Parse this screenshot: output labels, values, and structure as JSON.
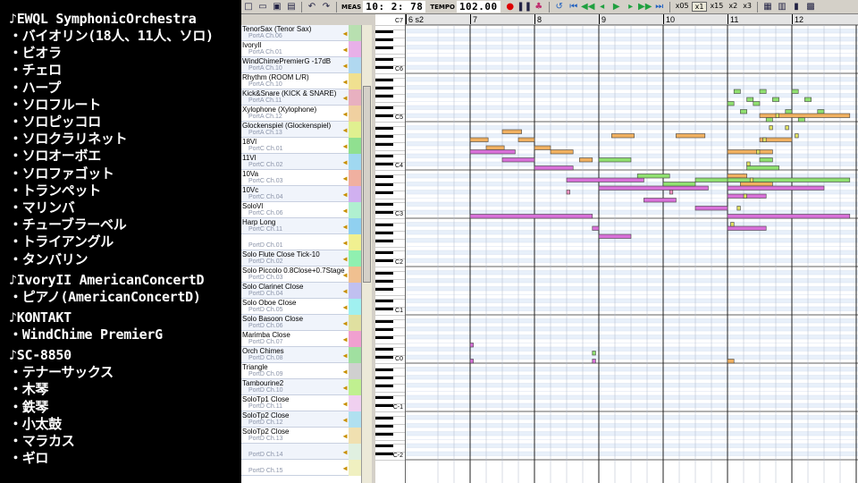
{
  "overlay": {
    "groups": [
      {
        "title": "♪EWQL SymphonicOrchestra",
        "items": [
          "・バイオリン(18人、11人、ソロ)",
          "・ビオラ",
          "・チェロ",
          "・ハープ",
          "・ソロフルート",
          "・ソロピッコロ",
          "・ソロクラリネット",
          "・ソロオーボエ",
          "・ソロファゴット",
          "・トランペット",
          "・マリンバ",
          "・チューブラーベル",
          "・トライアングル",
          "・タンバリン"
        ]
      },
      {
        "title": "♪IvoryII AmericanConcertD",
        "items": [
          "・ピアノ(AmericanConcertD)"
        ]
      },
      {
        "title": "♪KONTAKT",
        "items": [
          "・WindChime PremierG"
        ]
      },
      {
        "title": "♪SC-8850",
        "items": [
          "・テナーサックス",
          "・木琴",
          "・鉄琴",
          "・小太鼓",
          "・マラカス",
          "・ギロ"
        ]
      }
    ]
  },
  "toolbar": {
    "meas_label": "MEAS",
    "meas_value": "10: 2: 78",
    "tempo_label": "TEMPO",
    "tempo_value": "102.00",
    "zoom_options": [
      "x05",
      "x1",
      "x15",
      "x2",
      "x3"
    ],
    "zoom_selected": "x1",
    "icons": [
      "new-icon",
      "open-icon",
      "save-icon",
      "print-icon",
      "undo-icon",
      "redo-icon",
      "record-icon",
      "pause-icon",
      "metronome-icon",
      "loop-icon",
      "rewind-start-icon",
      "rewind-icon",
      "play-icon",
      "forward-icon",
      "forward-end-icon"
    ]
  },
  "tracks": [
    {
      "name": "TenorSax (Tenor Sax)",
      "port": "PortA  Ch.06",
      "color": "#b8e0b0"
    },
    {
      "name": "IvoryII",
      "port": "PortA  Ch.01",
      "color": "#e8b0e8"
    },
    {
      "name": "WindChimePremierG -17dB",
      "port": "PortA  Ch.10",
      "color": "#b0d8f0"
    },
    {
      "name": "Rhythm (ROOM L/R)",
      "port": "PortA  Ch.10",
      "color": "#f0e090"
    },
    {
      "name": "Kick&Snare (KICK & SNARE)",
      "port": "PortA  Ch.11",
      "color": "#e8b0c0"
    },
    {
      "name": "Xylophone (Xylophone)",
      "port": "PortA  Ch.12",
      "color": "#f0d0a0"
    },
    {
      "name": "Glockenspiel (Glockenspiel)",
      "port": "PortA  Ch.13",
      "color": "#e0f090"
    },
    {
      "name": "18Vl",
      "port": "PortC  Ch.01",
      "color": "#90e090"
    },
    {
      "name": "11Vl",
      "port": "PortC  Ch.02",
      "color": "#a0d8f0"
    },
    {
      "name": "10Va",
      "port": "PortC  Ch.03",
      "color": "#f0b0a0"
    },
    {
      "name": "10Vc",
      "port": "PortC  Ch.04",
      "color": "#d0b0f0"
    },
    {
      "name": "SoloVl",
      "port": "PortC  Ch.06",
      "color": "#b0f0d0"
    },
    {
      "name": "Harp Long",
      "port": "PortC  Ch.11",
      "color": "#90d0f0"
    },
    {
      "name": "",
      "port": "PortD  Ch.01",
      "color": "#f0f090"
    },
    {
      "name": "Solo Flute Close Tick-10",
      "port": "PortD  Ch.02",
      "color": "#90f0b0"
    },
    {
      "name": "Solo Piccolo 0.8Close+0.7Stage",
      "port": "PortD  Ch.03",
      "color": "#f0c090"
    },
    {
      "name": "Solo Clarinet Close",
      "port": "PortD  Ch.04",
      "color": "#c0c0f0"
    },
    {
      "name": "Solo Oboe Close",
      "port": "PortD  Ch.05",
      "color": "#a0f0f0"
    },
    {
      "name": "Solo Basoon Close",
      "port": "PortD  Ch.06",
      "color": "#e0e0a0"
    },
    {
      "name": "Marimba Close",
      "port": "PortD  Ch.07",
      "color": "#f0a0d0"
    },
    {
      "name": "Orch Chimes",
      "port": "PortD  Ch.08",
      "color": "#a0e0a0"
    },
    {
      "name": "Triangle",
      "port": "PortD  Ch.09",
      "color": "#d0d0d0"
    },
    {
      "name": "Tambourine2",
      "port": "PortD  Ch.10",
      "color": "#c0f090"
    },
    {
      "name": "SoloTp1 Close",
      "port": "PortD  Ch.11",
      "color": "#f0d0f0"
    },
    {
      "name": "SoloTp2 Close",
      "port": "PortD  Ch.12",
      "color": "#b0e0f0"
    },
    {
      "name": "SoloTp2 Close",
      "port": "PortD  Ch.13",
      "color": "#f0e0b0"
    },
    {
      "name": "",
      "port": "PortD  Ch.14",
      "color": "#e0f0e0"
    },
    {
      "name": "",
      "port": "PortD  Ch.15",
      "color": "#f0f0c0"
    }
  ],
  "ruler": {
    "measures": [
      "6 s2",
      "7",
      "8",
      "9",
      "10",
      "11",
      "12"
    ]
  },
  "keyboard": {
    "octave_labels": [
      "C7",
      "C6",
      "C5",
      "C4",
      "C3",
      "C2",
      "C1",
      "C0",
      "C-1",
      "C-2"
    ]
  },
  "piano_roll": {
    "notes": [
      {
        "measure": 7.0,
        "length": 0.28,
        "pitch": "G4",
        "color": "#f0b060"
      },
      {
        "measure": 7.25,
        "length": 0.28,
        "pitch": "F4",
        "color": "#f0b060"
      },
      {
        "measure": 7.5,
        "length": 0.3,
        "pitch": "A4",
        "color": "#f0b060"
      },
      {
        "measure": 7.75,
        "length": 0.25,
        "pitch": "G4",
        "color": "#f0b060"
      },
      {
        "measure": 8.0,
        "length": 0.25,
        "pitch": "F4",
        "color": "#f0b060"
      },
      {
        "measure": 8.25,
        "length": 0.35,
        "pitch": "E4",
        "color": "#f0b060"
      },
      {
        "measure": 8.7,
        "length": 0.2,
        "pitch": "D4",
        "color": "#f0b060"
      },
      {
        "measure": 9.2,
        "length": 0.35,
        "pitch": "G#4",
        "color": "#f0b060"
      },
      {
        "measure": 10.2,
        "length": 0.45,
        "pitch": "G#4",
        "color": "#f0b060"
      },
      {
        "measure": 11.0,
        "length": 0.7,
        "pitch": "E4",
        "color": "#f0b060"
      },
      {
        "measure": 11.0,
        "length": 0.3,
        "pitch": "A#3",
        "color": "#f0b060"
      },
      {
        "measure": 11.2,
        "length": 0.5,
        "pitch": "G#3",
        "color": "#f0b060"
      },
      {
        "measure": 11.5,
        "length": 0.5,
        "pitch": "G4",
        "color": "#f0b060"
      },
      {
        "measure": 11.0,
        "length": 0.1,
        "pitch": "C-0",
        "color": "#f0b060"
      },
      {
        "measure": 7.0,
        "length": 0.7,
        "pitch": "E4",
        "color": "#d870d8"
      },
      {
        "measure": 7.5,
        "length": 0.5,
        "pitch": "D4",
        "color": "#d870d8"
      },
      {
        "measure": 8.0,
        "length": 0.6,
        "pitch": "C4",
        "color": "#d870d8"
      },
      {
        "measure": 7.0,
        "length": 1.9,
        "pitch": "C3",
        "color": "#d870d8"
      },
      {
        "measure": 8.5,
        "length": 1.2,
        "pitch": "A3",
        "color": "#d870d8"
      },
      {
        "measure": 9.0,
        "length": 1.7,
        "pitch": "G3",
        "color": "#d870d8"
      },
      {
        "measure": 9.7,
        "length": 0.5,
        "pitch": "E3",
        "color": "#d870d8"
      },
      {
        "measure": 10.5,
        "length": 0.5,
        "pitch": "D3",
        "color": "#d870d8"
      },
      {
        "measure": 11.0,
        "length": 1.9,
        "pitch": "C3",
        "color": "#d870d8"
      },
      {
        "measure": 11.0,
        "length": 0.6,
        "pitch": "F3",
        "color": "#d870d8"
      },
      {
        "measure": 11.0,
        "length": 1.5,
        "pitch": "G3",
        "color": "#d870d8"
      },
      {
        "measure": 8.9,
        "length": 0.1,
        "pitch": "A2",
        "color": "#d870d8"
      },
      {
        "measure": 9.0,
        "length": 0.5,
        "pitch": "G2",
        "color": "#d870d8"
      },
      {
        "measure": 11.0,
        "length": 0.6,
        "pitch": "A2",
        "color": "#d870d8"
      },
      {
        "measure": 7.0,
        "length": 0.05,
        "pitch": "E0",
        "color": "#d870d8"
      },
      {
        "measure": 7.0,
        "length": 0.05,
        "pitch": "C0",
        "color": "#d870d8"
      },
      {
        "measure": 8.9,
        "length": 0.05,
        "pitch": "C0",
        "color": "#d870d8"
      },
      {
        "measure": 9.0,
        "length": 0.5,
        "pitch": "D4",
        "color": "#90e070"
      },
      {
        "measure": 9.6,
        "length": 0.5,
        "pitch": "A#3",
        "color": "#90e070"
      },
      {
        "measure": 10.0,
        "length": 0.5,
        "pitch": "G#3",
        "color": "#90e070"
      },
      {
        "measure": 10.5,
        "length": 0.7,
        "pitch": "A3",
        "color": "#90e070"
      },
      {
        "measure": 11.0,
        "length": 1.9,
        "pitch": "A3",
        "color": "#90e070"
      },
      {
        "measure": 11.3,
        "length": 0.5,
        "pitch": "C4",
        "color": "#90e070"
      },
      {
        "measure": 11.5,
        "length": 0.2,
        "pitch": "D4",
        "color": "#90e070"
      },
      {
        "measure": 11.1,
        "length": 0.1,
        "pitch": "G5",
        "color": "#90e070"
      },
      {
        "measure": 11.3,
        "length": 0.1,
        "pitch": "F5",
        "color": "#90e070"
      },
      {
        "measure": 11.5,
        "length": 0.1,
        "pitch": "G5",
        "color": "#90e070"
      },
      {
        "measure": 11.7,
        "length": 0.1,
        "pitch": "F5",
        "color": "#90e070"
      },
      {
        "measure": 12.0,
        "length": 0.1,
        "pitch": "G5",
        "color": "#90e070"
      },
      {
        "measure": 12.2,
        "length": 0.1,
        "pitch": "F5",
        "color": "#90e070"
      },
      {
        "measure": 11.0,
        "length": 0.1,
        "pitch": "E5",
        "color": "#90e070"
      },
      {
        "measure": 11.2,
        "length": 0.1,
        "pitch": "D5",
        "color": "#90e070"
      },
      {
        "measure": 11.4,
        "length": 0.1,
        "pitch": "E5",
        "color": "#90e070"
      },
      {
        "measure": 11.6,
        "length": 0.1,
        "pitch": "C5",
        "color": "#90e070"
      },
      {
        "measure": 11.9,
        "length": 0.1,
        "pitch": "D5",
        "color": "#90e070"
      },
      {
        "measure": 12.1,
        "length": 0.1,
        "pitch": "C5",
        "color": "#90e070"
      },
      {
        "measure": 12.4,
        "length": 0.1,
        "pitch": "D5",
        "color": "#90e070"
      },
      {
        "measure": 8.9,
        "length": 0.05,
        "pitch": "D0",
        "color": "#90e070"
      },
      {
        "measure": 11.5,
        "length": 1.4,
        "pitch": "C#5",
        "color": "#f0b060"
      },
      {
        "measure": 11.3,
        "length": 0.05,
        "pitch": "C#4",
        "color": "#e0e060"
      },
      {
        "measure": 11.35,
        "length": 0.05,
        "pitch": "A3",
        "color": "#e0e060"
      },
      {
        "measure": 11.25,
        "length": 0.05,
        "pitch": "F3",
        "color": "#e0e060"
      },
      {
        "measure": 11.15,
        "length": 0.05,
        "pitch": "D3",
        "color": "#e0e060"
      },
      {
        "measure": 11.05,
        "length": 0.05,
        "pitch": "A#2",
        "color": "#e0e060"
      },
      {
        "measure": 11.45,
        "length": 0.05,
        "pitch": "E4",
        "color": "#e0e060"
      },
      {
        "measure": 11.55,
        "length": 0.05,
        "pitch": "G4",
        "color": "#e0e060"
      },
      {
        "measure": 11.65,
        "length": 0.05,
        "pitch": "A#4",
        "color": "#e0e060"
      },
      {
        "measure": 11.75,
        "length": 0.05,
        "pitch": "C#5",
        "color": "#e0e060"
      },
      {
        "measure": 11.9,
        "length": 0.05,
        "pitch": "A#4",
        "color": "#e0e060"
      },
      {
        "measure": 12.05,
        "length": 0.05,
        "pitch": "G#4",
        "color": "#e0e060"
      },
      {
        "measure": 8.5,
        "length": 0.05,
        "pitch": "F#3",
        "color": "#f090c0"
      },
      {
        "measure": 10.1,
        "length": 0.05,
        "pitch": "F#3",
        "color": "#f090c0"
      }
    ]
  }
}
